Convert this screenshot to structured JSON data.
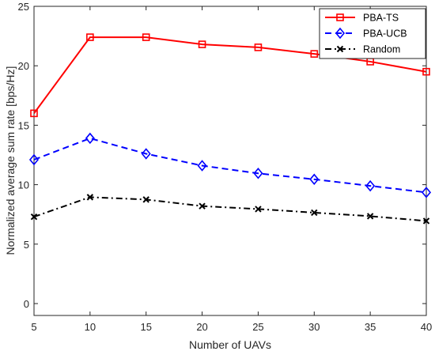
{
  "chart_data": {
    "type": "line",
    "xlabel": "Number of UAVs",
    "ylabel": "Normalized average sum rate [bps/Hz]",
    "xlim": [
      5,
      40
    ],
    "ylim": [
      -1,
      25
    ],
    "x_ticks": [
      5,
      10,
      15,
      20,
      25,
      30,
      35,
      40
    ],
    "y_ticks": [
      0,
      5,
      10,
      15,
      20,
      25
    ],
    "grid": false,
    "legend_position": "top-right",
    "x": [
      5,
      10,
      15,
      20,
      25,
      30,
      35,
      40
    ],
    "series": [
      {
        "name": "PBA-TS",
        "color": "#ff0000",
        "line_style": "solid",
        "marker": "square",
        "values": [
          16.0,
          22.4,
          22.4,
          21.8,
          21.55,
          21.0,
          20.35,
          19.5
        ]
      },
      {
        "name": "PBA-UCB",
        "color": "#0000ff",
        "line_style": "dashed",
        "marker": "diamond",
        "values": [
          12.1,
          13.9,
          12.6,
          11.6,
          10.95,
          10.45,
          9.9,
          9.35
        ]
      },
      {
        "name": "Random",
        "color": "#000000",
        "line_style": "dash-dot",
        "marker": "x",
        "values": [
          7.3,
          8.95,
          8.75,
          8.2,
          7.95,
          7.65,
          7.35,
          6.95
        ]
      }
    ]
  }
}
